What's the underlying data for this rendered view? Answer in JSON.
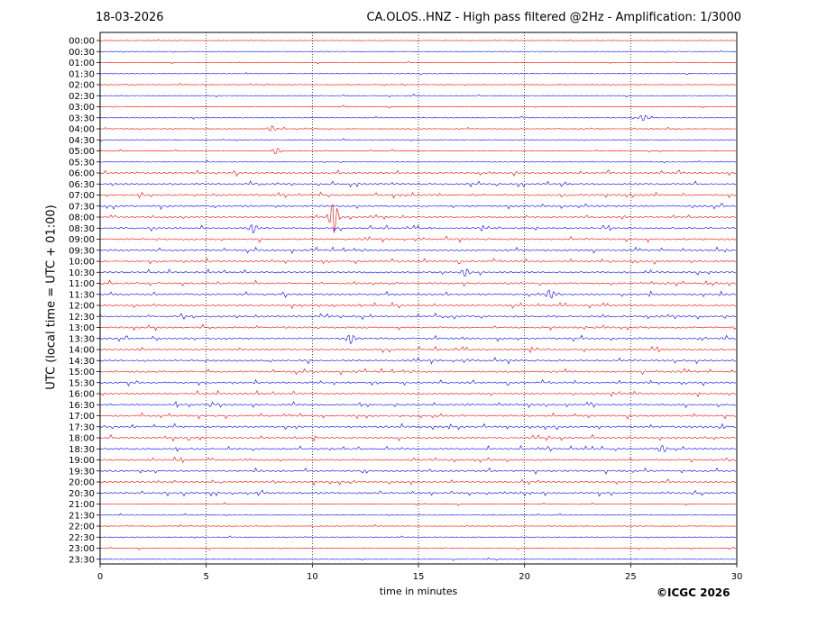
{
  "header": {
    "date": "18-03-2026",
    "title": "CA.OLOS..HNZ - High pass filtered @2Hz - Amplification: 1/3000"
  },
  "footer": {
    "copyright": "©ICGC 2026"
  },
  "chart_data": {
    "type": "line",
    "title": "CA.OLOS..HNZ - High pass filtered @2Hz - Amplification: 1/3000",
    "xlabel": "time in minutes",
    "ylabel": "UTC (local time = UTC + 01:00)",
    "xlim": [
      0,
      30
    ],
    "xticks": [
      0,
      5,
      10,
      15,
      20,
      25,
      30
    ],
    "x_gridlines": [
      5,
      10,
      15,
      20,
      25
    ],
    "grid": "vertical dotted at 5-minute intervals",
    "trace_colors": [
      "#ff0000",
      "#0000ff"
    ],
    "rows": [
      "00:00",
      "00:30",
      "01:00",
      "01:30",
      "02:00",
      "02:30",
      "03:00",
      "03:30",
      "04:00",
      "04:30",
      "05:00",
      "05:30",
      "06:00",
      "06:30",
      "07:00",
      "07:30",
      "08:00",
      "08:30",
      "09:00",
      "09:30",
      "10:00",
      "10:30",
      "11:00",
      "11:30",
      "12:00",
      "12:30",
      "13:00",
      "13:30",
      "14:00",
      "14:30",
      "15:00",
      "15:30",
      "16:00",
      "16:30",
      "17:00",
      "17:30",
      "18:00",
      "18:30",
      "19:00",
      "19:30",
      "20:00",
      "20:30",
      "21:00",
      "21:30",
      "22:00",
      "22:30",
      "23:00",
      "23:30"
    ],
    "events": [
      {
        "row": "08:00",
        "minute": 11.0,
        "amplitude": "large"
      },
      {
        "row": "11:30",
        "minute": 21.2,
        "amplitude": "medium"
      },
      {
        "row": "10:30",
        "minute": 17.2,
        "amplitude": "medium"
      },
      {
        "row": "13:30",
        "minute": 11.8,
        "amplitude": "medium"
      },
      {
        "row": "08:30",
        "minute": 7.2,
        "amplitude": "medium"
      },
      {
        "row": "18:30",
        "minute": 26.5,
        "amplitude": "medium"
      },
      {
        "row": "03:30",
        "minute": 25.6,
        "amplitude": "small"
      },
      {
        "row": "04:00",
        "minute": 8.1,
        "amplitude": "small"
      },
      {
        "row": "05:00",
        "minute": 8.3,
        "amplitude": "small"
      }
    ]
  }
}
